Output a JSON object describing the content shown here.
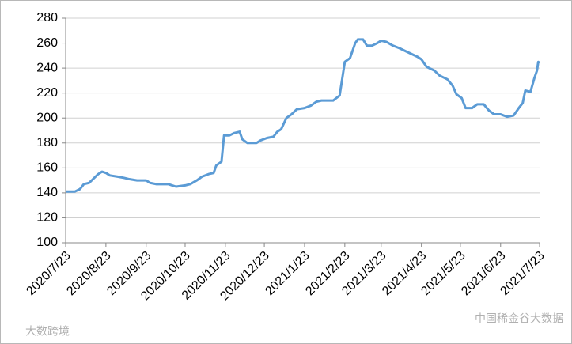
{
  "chart_data": {
    "type": "line",
    "x": [
      "2020/7/23",
      "2020/7/30",
      "2020/8/3",
      "2020/8/6",
      "2020/8/10",
      "2020/8/13",
      "2020/8/17",
      "2020/8/20",
      "2020/8/23",
      "2020/8/26",
      "2020/9/1",
      "2020/9/6",
      "2020/9/10",
      "2020/9/16",
      "2020/9/23",
      "2020/9/26",
      "2020/10/1",
      "2020/10/10",
      "2020/10/13",
      "2020/10/16",
      "2020/10/23",
      "2020/10/27",
      "2020/11/1",
      "2020/11/5",
      "2020/11/10",
      "2020/11/14",
      "2020/11/16",
      "2020/11/20",
      "2020/11/22",
      "2020/11/26",
      "2020/11/30",
      "2020/12/4",
      "2020/12/6",
      "2020/12/10",
      "2020/12/17",
      "2020/12/20",
      "2020/12/25",
      "2020/12/30",
      "2021/1/2",
      "2021/1/5",
      "2021/1/9",
      "2021/1/13",
      "2021/1/17",
      "2021/1/23",
      "2021/1/28",
      "2021/2/1",
      "2021/2/5",
      "2021/2/14",
      "2021/2/19",
      "2021/2/23",
      "2021/2/27",
      "2021/3/3",
      "2021/3/5",
      "2021/3/9",
      "2021/3/12",
      "2021/3/16",
      "2021/3/20",
      "2021/3/23",
      "2021/3/27",
      "2021/4/1",
      "2021/4/6",
      "2021/4/12",
      "2021/4/20",
      "2021/4/23",
      "2021/4/27",
      "2021/5/3",
      "2021/5/7",
      "2021/5/13",
      "2021/5/17",
      "2021/5/20",
      "2021/5/24",
      "2021/5/27",
      "2021/6/1",
      "2021/6/5",
      "2021/6/10",
      "2021/6/14",
      "2021/6/18",
      "2021/6/23",
      "2021/6/28",
      "2021/7/3",
      "2021/7/7",
      "2021/7/10",
      "2021/7/12",
      "2021/7/16",
      "2021/7/19",
      "2021/7/21",
      "2021/7/22",
      "2021/7/23"
    ],
    "series": [
      {
        "color": "#5b9bd5",
        "values": [
          141,
          141,
          143,
          147,
          148,
          151,
          155,
          157,
          156,
          154,
          153,
          152,
          151,
          150,
          150,
          148,
          147,
          147,
          146,
          145,
          146,
          147,
          150,
          153,
          155,
          156,
          162,
          165,
          186,
          186,
          188,
          189,
          183,
          180,
          180,
          182,
          184,
          185,
          189,
          191,
          200,
          203,
          207,
          208,
          210,
          213,
          214,
          214,
          218,
          245,
          248,
          260,
          263,
          263,
          258,
          258,
          260,
          262,
          261,
          258,
          256,
          253,
          249,
          247,
          241,
          238,
          234,
          231,
          226,
          219,
          216,
          208,
          208,
          211,
          211,
          206,
          203,
          203,
          201,
          202,
          208,
          212,
          222,
          221,
          232,
          238,
          245,
          244
        ]
      }
    ],
    "xlim": [
      "2020/7/23",
      "2021/7/23"
    ],
    "xticks": [
      "2020/7/23",
      "2020/8/23",
      "2020/9/23",
      "2020/10/23",
      "2020/11/23",
      "2020/12/23",
      "2021/1/23",
      "2021/2/23",
      "2021/3/23",
      "2021/4/23",
      "2021/5/23",
      "2021/6/23",
      "2021/7/23"
    ],
    "ylim": [
      100,
      280
    ],
    "yticks": [
      100,
      120,
      140,
      160,
      180,
      200,
      220,
      240,
      260,
      280
    ],
    "grid": true,
    "watermarks": [
      "大数跨境",
      "中国稀金谷大数据"
    ]
  }
}
